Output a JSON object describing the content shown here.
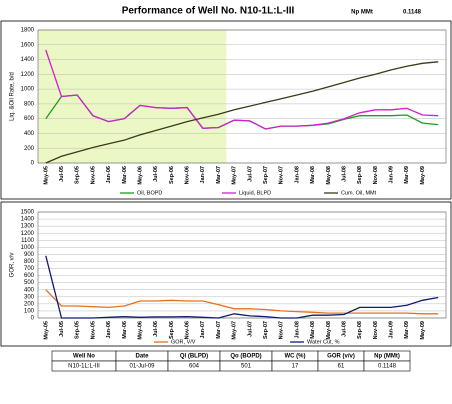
{
  "header": {
    "title": "Performance of Well No. N10-1L:L-III",
    "np_label": "Np MMt",
    "np_value": "0.1148"
  },
  "chart_data": [
    {
      "type": "line",
      "y_label": "Liq. &Oil Rate, b/d",
      "categories": [
        "May-05",
        "Jul-05",
        "Sep-05",
        "Nov-05",
        "Jan-06",
        "Mar-06",
        "May-06",
        "Jul-06",
        "Sep-06",
        "Nov-06",
        "Jan-07",
        "Mar-07",
        "May-07",
        "Jul-07",
        "Sep-07",
        "Nov-07",
        "Jan-08",
        "Mar-08",
        "May-08",
        "Jul-08",
        "Sep-08",
        "Nov-08",
        "Jan-09",
        "Mar-09",
        "May-09",
        null
      ],
      "ylim": [
        0,
        1800
      ],
      "yticks": [
        0,
        200,
        400,
        600,
        800,
        1000,
        1200,
        1400,
        1600,
        1800
      ],
      "grid": true,
      "highlight": {
        "from": "May-05",
        "to": "Mar-07",
        "color": "#ebf7c4"
      },
      "series": [
        {
          "name": "Oil, BOPD",
          "color": "#1e9e1e",
          "values": [
            600,
            900,
            920,
            640,
            560,
            600,
            780,
            750,
            740,
            750,
            470,
            480,
            580,
            570,
            460,
            500,
            500,
            510,
            530,
            590,
            640,
            640,
            640,
            650,
            540,
            520
          ]
        },
        {
          "name": "Liquid, BLPD",
          "color": "#d020d0",
          "values": [
            1530,
            900,
            920,
            640,
            560,
            600,
            780,
            750,
            740,
            750,
            470,
            480,
            580,
            570,
            460,
            500,
            500,
            510,
            540,
            600,
            680,
            720,
            720,
            740,
            650,
            640
          ]
        },
        {
          "name": "Cum. Oil, MMt",
          "color": "#3a3a1a",
          "values": [
            0,
            90,
            150,
            210,
            260,
            310,
            380,
            440,
            500,
            560,
            610,
            660,
            720,
            770,
            820,
            870,
            920,
            970,
            1030,
            1090,
            1150,
            1200,
            1260,
            1310,
            1350,
            1370
          ]
        }
      ]
    },
    {
      "type": "line",
      "y_label": "GOR, v/v",
      "categories": [
        "May-05",
        "Jul-05",
        "Sep-05",
        "Nov-05",
        "Jan-06",
        "Mar-06",
        "May-06",
        "Jul-06",
        "Sep-06",
        "Nov-06",
        "Jan-07",
        "Mar-07",
        "May-07",
        "Jul-07",
        "Sep-07",
        "Nov-07",
        "Jan-08",
        "Mar-08",
        "May-08",
        "Jul-08",
        "Sep-08",
        "Nov-08",
        "Jan-09",
        "Mar-09",
        "May-09",
        null
      ],
      "ylim": [
        0,
        1500
      ],
      "yticks": [
        0,
        100,
        200,
        300,
        400,
        500,
        600,
        700,
        800,
        900,
        1000,
        1100,
        1200,
        1300,
        1400,
        1500
      ],
      "grid": true,
      "series": [
        {
          "name": "GOR, V/V",
          "color": "#e8711c",
          "values": [
            400,
            170,
            170,
            160,
            150,
            170,
            240,
            240,
            250,
            240,
            240,
            190,
            130,
            130,
            120,
            100,
            90,
            80,
            70,
            70,
            70,
            70,
            70,
            70,
            60,
            60
          ]
        },
        {
          "name": "Water Cut, %",
          "color": "#101c6e",
          "values": [
            880,
            0,
            0,
            0,
            10,
            20,
            10,
            15,
            15,
            20,
            10,
            0,
            60,
            30,
            20,
            0,
            0,
            40,
            40,
            50,
            150,
            150,
            150,
            180,
            250,
            290
          ]
        }
      ]
    }
  ],
  "table": {
    "columns": [
      "Well No",
      "Date",
      "Ql (BLPD)",
      "Qo (BOPD)",
      "WC (%)",
      "GOR (v/v)",
      "Np (MMt)"
    ],
    "column_colors": [
      "#000000",
      "#000000",
      "#d020d0",
      "#1e9e1e",
      "#1030c0",
      "#e01010",
      "#1e9e1e"
    ],
    "rows": [
      [
        "N10-1L:L-III",
        "01-Jul-09",
        604,
        501,
        17,
        61,
        0.1148
      ]
    ]
  }
}
